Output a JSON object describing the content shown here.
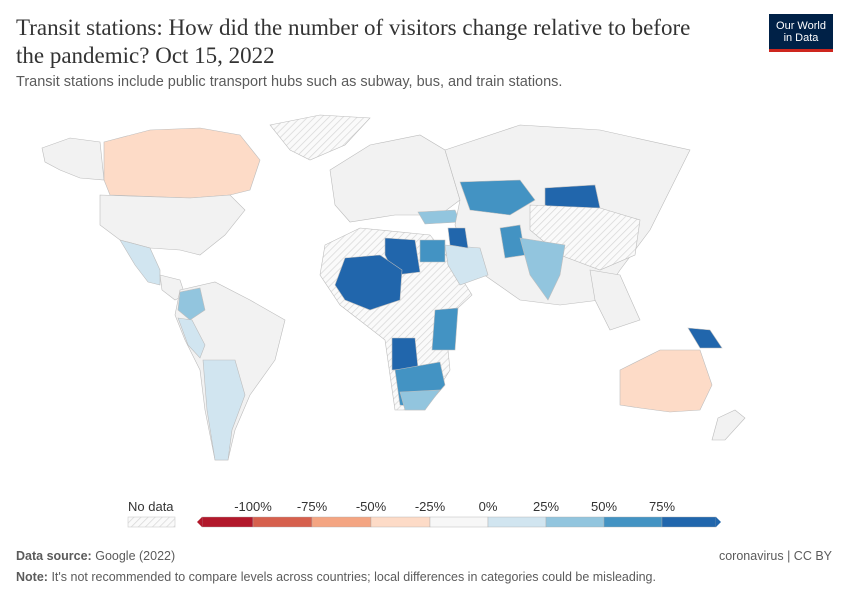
{
  "header": {
    "title": "Transit stations: How did the number of visitors change relative to before the pandemic? Oct 15, 2022",
    "subtitle": "Transit stations include public transport hubs such as subway, bus, and train stations.",
    "logo": {
      "line1": "Our World",
      "line2": "in Data"
    }
  },
  "legend": {
    "no_data_label": "No data",
    "bins": [
      {
        "label": "-100%",
        "color": "#b2182b"
      },
      {
        "label": "-75%",
        "color": "#d6604d"
      },
      {
        "label": "-50%",
        "color": "#f4a582"
      },
      {
        "label": "-25%",
        "color": "#fddbc7"
      },
      {
        "label": "0%",
        "color": "#f7f7f7"
      },
      {
        "label": "25%",
        "color": "#d1e5f0"
      },
      {
        "label": "50%",
        "color": "#92c5de"
      },
      {
        "label": "75%",
        "color": "#4393c3"
      },
      {
        "label": "",
        "color": "#2166ac"
      }
    ],
    "no_data_color": "#e8e8e8"
  },
  "footer": {
    "source_label": "Data source:",
    "source": "Google (2022)",
    "license": "coronavirus | CC BY",
    "note_label": "Note:",
    "note": "It's not recommended to compare levels across countries; local differences in categories could be misleading."
  }
}
